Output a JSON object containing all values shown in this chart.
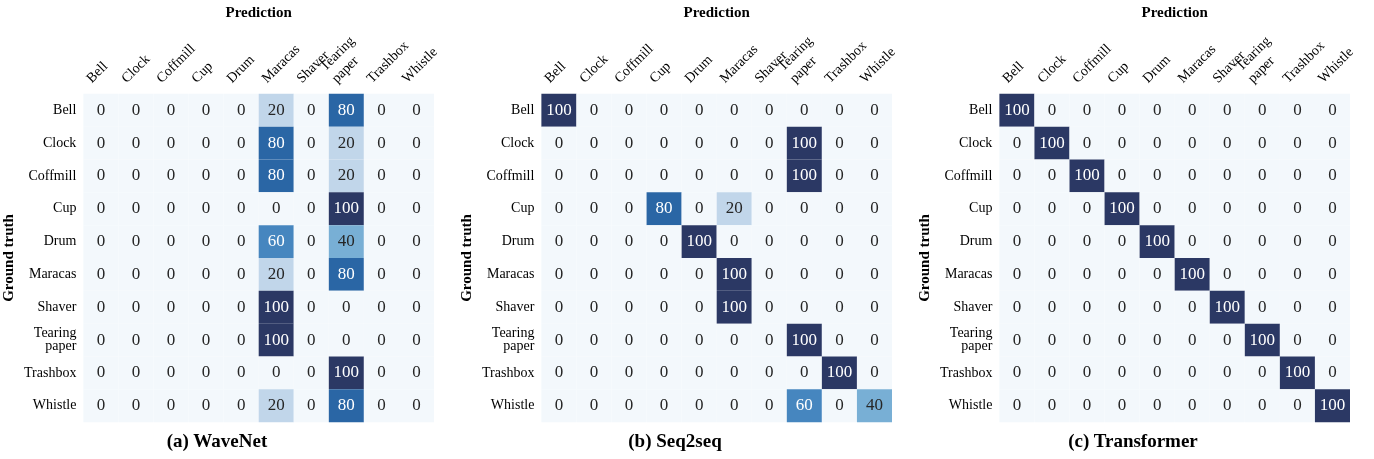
{
  "chart_data": [
    {
      "type": "heatmap",
      "data_labels": true,
      "title": "(a) WaveNet",
      "xlabel": "Prediction",
      "ylabel": "Ground truth",
      "categories": [
        "Bell",
        "Clock",
        "Coffmill",
        "Cup",
        "Drum",
        "Maracas",
        "Shaver",
        "Tearing paper",
        "Trashbox",
        "Whistle"
      ],
      "y_categories": [
        "Bell",
        "Clock",
        "Coffmill",
        "Cup",
        "Drum",
        "Maracas",
        "Shaver",
        "Tearing paper",
        "Trashbox",
        "Whistle"
      ],
      "cells": [
        [
          0,
          0,
          0,
          0,
          0,
          20,
          0,
          80,
          0,
          0
        ],
        [
          0,
          0,
          0,
          0,
          0,
          80,
          0,
          20,
          0,
          0
        ],
        [
          0,
          0,
          0,
          0,
          0,
          80,
          0,
          20,
          0,
          0
        ],
        [
          0,
          0,
          0,
          0,
          0,
          0,
          0,
          100,
          0,
          0
        ],
        [
          0,
          0,
          0,
          0,
          0,
          60,
          0,
          40,
          0,
          0
        ],
        [
          0,
          0,
          0,
          0,
          0,
          20,
          0,
          80,
          0,
          0
        ],
        [
          0,
          0,
          0,
          0,
          0,
          100,
          0,
          0,
          0,
          0
        ],
        [
          0,
          0,
          0,
          0,
          0,
          100,
          0,
          0,
          0,
          0
        ],
        [
          0,
          0,
          0,
          0,
          0,
          0,
          0,
          100,
          0,
          0
        ],
        [
          0,
          0,
          0,
          0,
          0,
          20,
          0,
          80,
          0,
          0
        ]
      ]
    },
    {
      "type": "heatmap",
      "data_labels": true,
      "title": "(b) Seq2seq",
      "xlabel": "Prediction",
      "ylabel": "Ground truth",
      "categories": [
        "Bell",
        "Clock",
        "Coffmill",
        "Cup",
        "Drum",
        "Maracas",
        "Shaver",
        "Tearing paper",
        "Trashbox",
        "Whistle"
      ],
      "y_categories": [
        "Bell",
        "Clock",
        "Coffmill",
        "Cup",
        "Drum",
        "Maracas",
        "Shaver",
        "Tearing paper",
        "Trashbox",
        "Whistle"
      ],
      "cells": [
        [
          100,
          0,
          0,
          0,
          0,
          0,
          0,
          0,
          0,
          0
        ],
        [
          0,
          0,
          0,
          0,
          0,
          0,
          0,
          100,
          0,
          0
        ],
        [
          0,
          0,
          0,
          0,
          0,
          0,
          0,
          100,
          0,
          0
        ],
        [
          0,
          0,
          0,
          80,
          0,
          20,
          0,
          0,
          0,
          0
        ],
        [
          0,
          0,
          0,
          0,
          100,
          0,
          0,
          0,
          0,
          0
        ],
        [
          0,
          0,
          0,
          0,
          0,
          100,
          0,
          0,
          0,
          0
        ],
        [
          0,
          0,
          0,
          0,
          0,
          100,
          0,
          0,
          0,
          0
        ],
        [
          0,
          0,
          0,
          0,
          0,
          0,
          0,
          100,
          0,
          0
        ],
        [
          0,
          0,
          0,
          0,
          0,
          0,
          0,
          0,
          100,
          0
        ],
        [
          0,
          0,
          0,
          0,
          0,
          0,
          0,
          60,
          0,
          40
        ]
      ]
    },
    {
      "type": "heatmap",
      "data_labels": true,
      "title": "(c) Transformer",
      "xlabel": "Prediction",
      "ylabel": "Ground truth",
      "categories": [
        "Bell",
        "Clock",
        "Coffmill",
        "Cup",
        "Drum",
        "Maracas",
        "Shaver",
        "Tearing paper",
        "Trashbox",
        "Whistle"
      ],
      "y_categories": [
        "Bell",
        "Clock",
        "Coffmill",
        "Cup",
        "Drum",
        "Maracas",
        "Shaver",
        "Tearing paper",
        "Trashbox",
        "Whistle"
      ],
      "cells": [
        [
          100,
          0,
          0,
          0,
          0,
          0,
          0,
          0,
          0,
          0
        ],
        [
          0,
          100,
          0,
          0,
          0,
          0,
          0,
          0,
          0,
          0
        ],
        [
          0,
          0,
          100,
          0,
          0,
          0,
          0,
          0,
          0,
          0
        ],
        [
          0,
          0,
          0,
          100,
          0,
          0,
          0,
          0,
          0,
          0
        ],
        [
          0,
          0,
          0,
          0,
          100,
          0,
          0,
          0,
          0,
          0
        ],
        [
          0,
          0,
          0,
          0,
          0,
          100,
          0,
          0,
          0,
          0
        ],
        [
          0,
          0,
          0,
          0,
          0,
          0,
          100,
          0,
          0,
          0
        ],
        [
          0,
          0,
          0,
          0,
          0,
          0,
          0,
          100,
          0,
          0
        ],
        [
          0,
          0,
          0,
          0,
          0,
          0,
          0,
          0,
          100,
          0
        ],
        [
          0,
          0,
          0,
          0,
          0,
          0,
          0,
          0,
          0,
          100
        ]
      ]
    }
  ]
}
